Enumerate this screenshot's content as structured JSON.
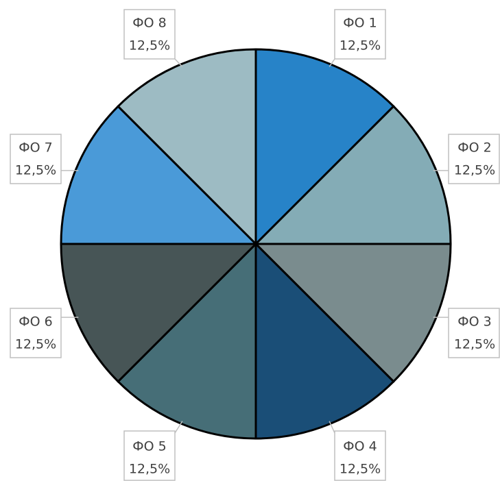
{
  "chart_data": {
    "type": "pie",
    "categories": [
      "ФО 1",
      "ФО 2",
      "ФО 3",
      "ФО 4",
      "ФО 5",
      "ФО 6",
      "ФО 7",
      "ФО 8"
    ],
    "values": [
      12.5,
      12.5,
      12.5,
      12.5,
      12.5,
      12.5,
      12.5,
      12.5
    ],
    "value_labels": [
      "12,5%",
      "12,5%",
      "12,5%",
      "12,5%",
      "12,5%",
      "12,5%",
      "12,5%",
      "12,5%"
    ],
    "colors": [
      "#2783c8",
      "#84acb6",
      "#7a8c8e",
      "#1a4e77",
      "#466e77",
      "#475556",
      "#4a9ad8",
      "#9dbbc3"
    ]
  }
}
